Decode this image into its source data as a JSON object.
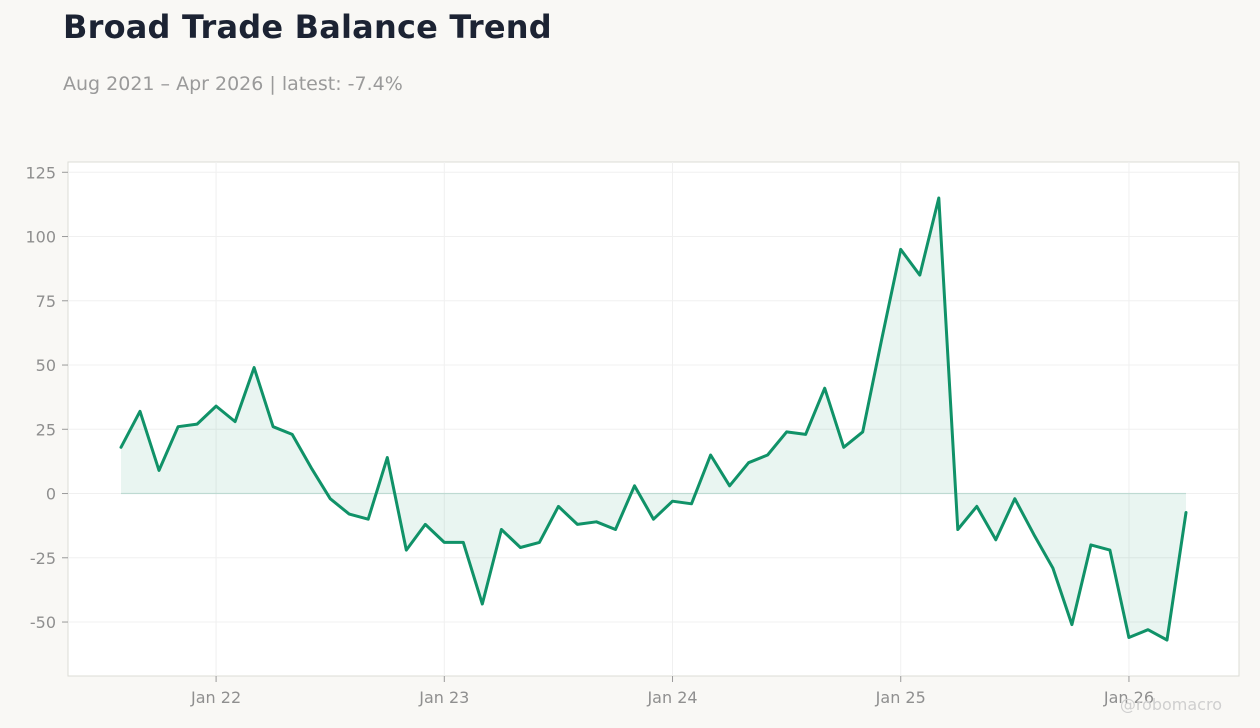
{
  "header": {
    "title": "Broad Trade Balance Trend",
    "subtitle": "Aug 2021 – Apr 2026 | latest: -7.4%"
  },
  "watermark": "@robomacro",
  "colors": {
    "line": "#109268",
    "fill": "rgba(16,146,104,0.09)",
    "grid": "#f0f0f0",
    "frame": "#dcdcd6",
    "plot_bg": "#ffffff",
    "tick_text": "#8f8f8f"
  },
  "chart_data": {
    "type": "area",
    "title": "Broad Trade Balance Trend",
    "subtitle": "Aug 2021 – Apr 2026 | latest: -7.4%",
    "xlabel": "",
    "ylabel": "",
    "grid": true,
    "legend": "none",
    "x": [
      "2021-08",
      "2021-09",
      "2021-10",
      "2021-11",
      "2021-12",
      "2022-01",
      "2022-02",
      "2022-03",
      "2022-04",
      "2022-05",
      "2022-06",
      "2022-07",
      "2022-08",
      "2022-09",
      "2022-10",
      "2022-11",
      "2022-12",
      "2023-01",
      "2023-02",
      "2023-03",
      "2023-04",
      "2023-05",
      "2023-06",
      "2023-07",
      "2023-08",
      "2023-09",
      "2023-10",
      "2023-11",
      "2023-12",
      "2024-01",
      "2024-02",
      "2024-03",
      "2024-04",
      "2024-05",
      "2024-06",
      "2024-07",
      "2024-08",
      "2024-09",
      "2024-10",
      "2024-11",
      "2024-12",
      "2025-01",
      "2025-02",
      "2025-03",
      "2025-04",
      "2025-05",
      "2025-06",
      "2025-07",
      "2025-08",
      "2025-09",
      "2025-10",
      "2025-11",
      "2025-12",
      "2026-01",
      "2026-02",
      "2026-03",
      "2026-04"
    ],
    "series": [
      {
        "values": [
          18,
          32,
          9,
          26,
          27,
          34,
          28,
          49,
          26,
          23,
          10,
          -2,
          -8,
          -10,
          14,
          -22,
          -12,
          -19,
          -19,
          -43,
          -14,
          -21,
          -19,
          -5,
          -12,
          -11,
          -14,
          3,
          -10,
          -3,
          -4,
          15,
          3,
          12,
          15,
          24,
          23,
          41,
          18,
          24,
          60,
          95,
          85,
          115,
          -14,
          -5,
          -18,
          -2,
          -16,
          -29,
          -51,
          -20,
          -22,
          -56,
          -53,
          -57,
          -7.4
        ]
      }
    ],
    "ylim": [
      -71,
      129
    ],
    "yticks": [
      -50,
      -25,
      0,
      25,
      50,
      75,
      100,
      125
    ],
    "xticks": [
      {
        "date": "2022-01",
        "label": "Jan 22"
      },
      {
        "date": "2023-01",
        "label": "Jan 23"
      },
      {
        "date": "2024-01",
        "label": "Jan 24"
      },
      {
        "date": "2025-01",
        "label": "Jan 25"
      },
      {
        "date": "2026-01",
        "label": "Jan 26"
      }
    ]
  }
}
